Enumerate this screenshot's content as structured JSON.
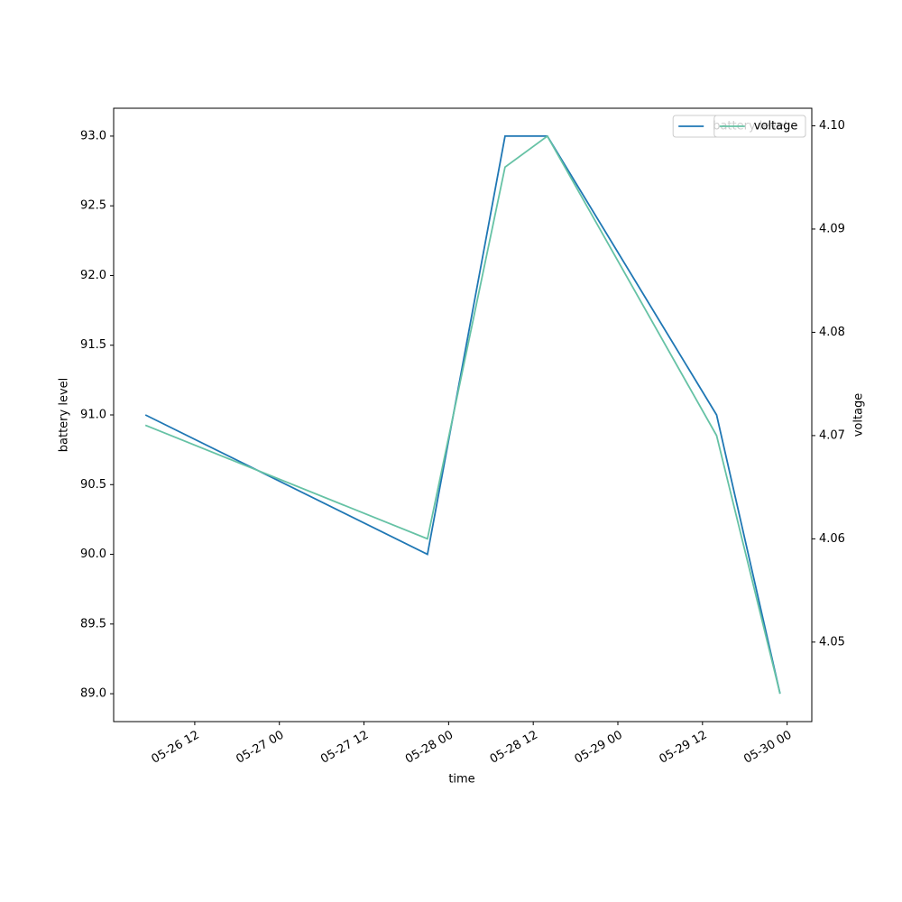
{
  "chart_data": {
    "type": "line",
    "x": [
      "05-26 05:00",
      "05-27 21:00",
      "05-28 08:00",
      "05-28 14:00",
      "05-29 14:00",
      "05-29 23:00"
    ],
    "xlim": [
      "05-26 00:30",
      "05-30 03:30"
    ],
    "xticks": [
      "05-26 12",
      "05-27 00",
      "05-27 12",
      "05-28 00",
      "05-28 12",
      "05-29 00",
      "05-29 12",
      "05-30 00"
    ],
    "xlabel": "time",
    "ylabel": "battery level",
    "y2label": "voltage",
    "ylim": [
      88.8,
      93.2
    ],
    "yticks": [
      {
        "value": 89,
        "label": "89.0"
      },
      {
        "value": 89.5,
        "label": "89.5"
      },
      {
        "value": 90,
        "label": "90.0"
      },
      {
        "value": 90.5,
        "label": "90.5"
      },
      {
        "value": 91,
        "label": "91.0"
      },
      {
        "value": 91.5,
        "label": "91.5"
      },
      {
        "value": 92,
        "label": "92.0"
      },
      {
        "value": 92.5,
        "label": "92.5"
      },
      {
        "value": 93,
        "label": "93.0"
      }
    ],
    "y2lim": [
      4.0423,
      4.1017
    ],
    "y2ticks": [
      4.05,
      4.06,
      4.07,
      4.08,
      4.09,
      {
        "value": 4.1,
        "label": "4.10"
      }
    ],
    "series": [
      {
        "name": "battery level",
        "color": "#1f77b4",
        "values": [
          91,
          90,
          93,
          93,
          91,
          89
        ]
      },
      {
        "name": "voltage",
        "color": "#66c2a5",
        "values": [
          4.071,
          4.06,
          4.096,
          4.099,
          4.07,
          4.045
        ],
        "axis": "y2"
      }
    ],
    "legend": "upper right"
  }
}
